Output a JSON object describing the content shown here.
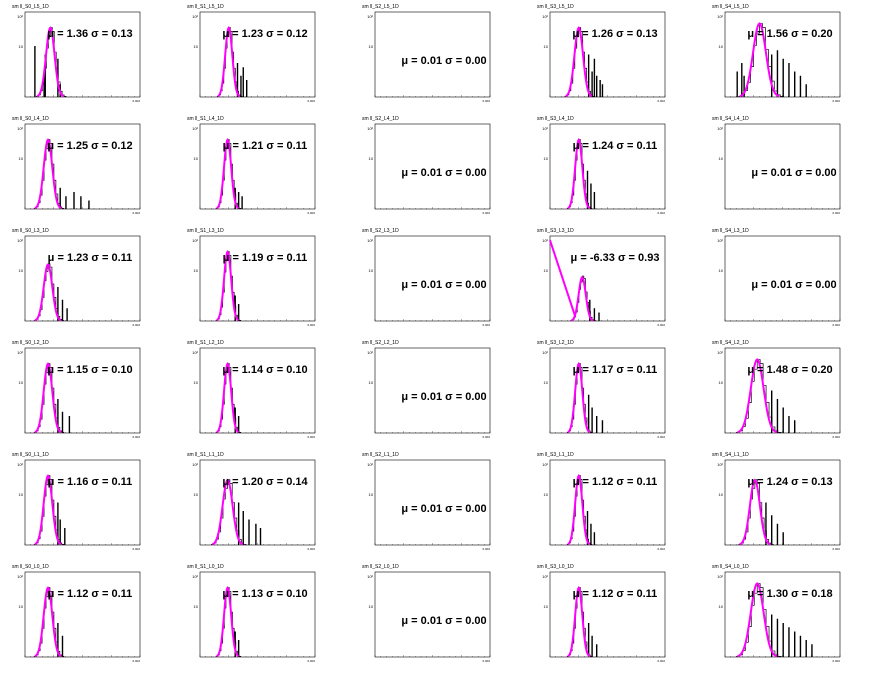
{
  "colors": {
    "histogram": "#000000",
    "fit": "#ff00ff",
    "frame": "#000000",
    "background": "#ffffff"
  },
  "chart_data": [
    {
      "type": "histogram",
      "title": "sm ll_S0_L5_1D",
      "yticks": [
        "10²",
        "10"
      ],
      "xtick": "0.002",
      "fit": {
        "mu": "1.36",
        "sigma": "0.13"
      },
      "peak": 0.22,
      "width": 0.06,
      "flat": false,
      "pos": "right",
      "tail": [
        [
          0.08,
          0.4
        ],
        [
          0.16,
          0.75
        ],
        [
          0.17,
          0.5
        ],
        [
          0.28,
          0.55
        ],
        [
          0.3,
          0.85
        ]
      ],
      "cap": 0.15,
      "curve": []
    },
    {
      "type": "histogram",
      "title": "sm ll_S1_L5_1D",
      "yticks": [
        "10²",
        "10"
      ],
      "xtick": "0.002",
      "fit": {
        "mu": "1.23",
        "sigma": "0.12"
      },
      "peak": 0.25,
      "width": 0.05,
      "flat": false,
      "pos": "right",
      "tail": [
        [
          0.32,
          0.6
        ],
        [
          0.35,
          0.75
        ],
        [
          0.37,
          0.65
        ],
        [
          0.4,
          0.8
        ]
      ],
      "cap": 0.15,
      "curve": []
    },
    {
      "type": "histogram",
      "title": "sm ll_S2_L5_1D",
      "yticks": [
        "10²",
        "10"
      ],
      "xtick": "0.002",
      "fit": {
        "mu": "0.01",
        "sigma": "0.00"
      },
      "flat": true,
      "pos": "lower"
    },
    {
      "type": "histogram",
      "title": "sm ll_S3_L5_1D",
      "yticks": [
        "10²",
        "10"
      ],
      "xtick": "0.002",
      "fit": {
        "mu": "1.26",
        "sigma": "0.13"
      },
      "peak": 0.25,
      "width": 0.06,
      "flat": false,
      "pos": "right",
      "tail": [
        [
          0.33,
          0.5
        ],
        [
          0.36,
          0.7
        ],
        [
          0.38,
          0.55
        ],
        [
          0.4,
          0.75
        ],
        [
          0.43,
          0.8
        ],
        [
          0.45,
          0.85
        ]
      ],
      "cap": 0.15,
      "curve": []
    },
    {
      "type": "histogram",
      "title": "sm ll_S4_L5_1D",
      "yticks": [
        "10²",
        "10"
      ],
      "xtick": "0.002",
      "fit": {
        "mu": "1.56",
        "sigma": "0.20"
      },
      "peak": 0.3,
      "width": 0.09,
      "flat": false,
      "pos": "right",
      "tail": [
        [
          0.1,
          0.7
        ],
        [
          0.14,
          0.6
        ],
        [
          0.16,
          0.75
        ],
        [
          0.4,
          0.5
        ],
        [
          0.45,
          0.45
        ],
        [
          0.5,
          0.55
        ],
        [
          0.55,
          0.6
        ],
        [
          0.6,
          0.7
        ],
        [
          0.65,
          0.75
        ],
        [
          0.7,
          0.85
        ]
      ],
      "cap": 0.1,
      "curve": []
    },
    {
      "type": "histogram",
      "title": "sm ll_S0_L4_1D",
      "yticks": [
        "10²",
        "10"
      ],
      "xtick": "0.002",
      "fit": {
        "mu": "1.25",
        "sigma": "0.12"
      },
      "peak": 0.2,
      "width": 0.06,
      "flat": false,
      "pos": "right",
      "tail": [
        [
          0.3,
          0.75
        ],
        [
          0.35,
          0.85
        ],
        [
          0.42,
          0.8
        ],
        [
          0.48,
          0.85
        ],
        [
          0.55,
          0.9
        ]
      ],
      "cap": 0.15,
      "curve": []
    },
    {
      "type": "histogram",
      "title": "sm ll_S1_L4_1D",
      "yticks": [
        "10²",
        "10"
      ],
      "xtick": "0.002",
      "fit": {
        "mu": "1.21",
        "sigma": "0.11"
      },
      "peak": 0.24,
      "width": 0.05,
      "flat": false,
      "pos": "right",
      "tail": [
        [
          0.3,
          0.75
        ],
        [
          0.33,
          0.8
        ],
        [
          0.36,
          0.85
        ]
      ],
      "cap": 0.15,
      "curve": []
    },
    {
      "type": "histogram",
      "title": "sm ll_S2_L4_1D",
      "yticks": [
        "10²",
        "10"
      ],
      "xtick": "0.002",
      "fit": {
        "mu": "0.01",
        "sigma": "0.00"
      },
      "flat": true,
      "pos": "lower"
    },
    {
      "type": "histogram",
      "title": "sm ll_S3_L4_1D",
      "yticks": [
        "10²",
        "10"
      ],
      "xtick": "0.002",
      "fit": {
        "mu": "1.24",
        "sigma": "0.11"
      },
      "peak": 0.25,
      "width": 0.05,
      "flat": false,
      "pos": "right",
      "tail": [
        [
          0.32,
          0.55
        ],
        [
          0.35,
          0.7
        ],
        [
          0.38,
          0.8
        ]
      ],
      "cap": 0.15,
      "curve": []
    },
    {
      "type": "histogram",
      "title": "sm ll_S4_L4_1D",
      "yticks": [
        "10²",
        "10"
      ],
      "xtick": "0.002",
      "fit": {
        "mu": "0.01",
        "sigma": "0.00"
      },
      "flat": true,
      "pos": "lower"
    },
    {
      "type": "histogram",
      "title": "sm ll_S0_L3_1D",
      "yticks": [
        "10²",
        "10"
      ],
      "xtick": "0.002",
      "fit": {
        "mu": "1.23",
        "sigma": "0.11"
      },
      "peak": 0.2,
      "width": 0.06,
      "flat": false,
      "pos": "right",
      "tail": [
        [
          0.28,
          0.6
        ],
        [
          0.32,
          0.75
        ],
        [
          0.36,
          0.85
        ]
      ],
      "cap": 0.3,
      "curve": []
    },
    {
      "type": "histogram",
      "title": "sm ll_S1_L3_1D",
      "yticks": [
        "10²",
        "10"
      ],
      "xtick": "0.002",
      "fit": {
        "mu": "1.19",
        "sigma": "0.11"
      },
      "peak": 0.24,
      "width": 0.05,
      "flat": false,
      "pos": "right",
      "tail": [
        [
          0.3,
          0.7
        ],
        [
          0.33,
          0.8
        ]
      ],
      "cap": 0.15,
      "curve": []
    },
    {
      "type": "histogram",
      "title": "sm ll_S2_L3_1D",
      "yticks": [
        "10²",
        "10"
      ],
      "xtick": "0.002",
      "fit": {
        "mu": "0.01",
        "sigma": "0.00"
      },
      "flat": true,
      "pos": "lower"
    },
    {
      "type": "histogram",
      "title": "sm ll_S3_L3_1D",
      "yticks": [
        "10²",
        "10"
      ],
      "xtick": "0.002",
      "fit": {
        "mu": "-6.33",
        "sigma": "0.93"
      },
      "flat": false,
      "pos": "right",
      "peak": 0.28,
      "width": 0.05,
      "tail": [
        [
          0.34,
          0.75
        ],
        [
          0.38,
          0.85
        ],
        [
          0.42,
          0.9
        ]
      ],
      "cap": 0.45,
      "curve": [
        [
          0.0,
          0.05
        ],
        [
          0.22,
          0.95
        ]
      ]
    },
    {
      "type": "histogram",
      "title": "sm ll_S4_L3_1D",
      "yticks": [
        "10²",
        "10"
      ],
      "xtick": "0.002",
      "fit": {
        "mu": "0.01",
        "sigma": "0.00"
      },
      "flat": true,
      "pos": "lower"
    },
    {
      "type": "histogram",
      "title": "sm ll_S0_L2_1D",
      "yticks": [
        "10²",
        "10"
      ],
      "xtick": "0.002",
      "fit": {
        "mu": "1.15",
        "sigma": "0.10"
      },
      "peak": 0.2,
      "width": 0.06,
      "flat": false,
      "pos": "right",
      "tail": [
        [
          0.28,
          0.6
        ],
        [
          0.32,
          0.75
        ],
        [
          0.38,
          0.8
        ]
      ],
      "cap": 0.15,
      "curve": []
    },
    {
      "type": "histogram",
      "title": "sm ll_S1_L2_1D",
      "yticks": [
        "10²",
        "10"
      ],
      "xtick": "0.002",
      "fit": {
        "mu": "1.14",
        "sigma": "0.10"
      },
      "peak": 0.24,
      "width": 0.05,
      "flat": false,
      "pos": "right",
      "tail": [
        [
          0.3,
          0.7
        ],
        [
          0.33,
          0.8
        ]
      ],
      "cap": 0.15,
      "curve": []
    },
    {
      "type": "histogram",
      "title": "sm ll_S2_L2_1D",
      "yticks": [
        "10²",
        "10"
      ],
      "xtick": "0.002",
      "fit": {
        "mu": "0.01",
        "sigma": "0.00"
      },
      "flat": true,
      "pos": "lower"
    },
    {
      "type": "histogram",
      "title": "sm ll_S3_L2_1D",
      "yticks": [
        "10²",
        "10"
      ],
      "xtick": "0.002",
      "fit": {
        "mu": "1.17",
        "sigma": "0.11"
      },
      "peak": 0.25,
      "width": 0.05,
      "flat": false,
      "pos": "right",
      "tail": [
        [
          0.33,
          0.55
        ],
        [
          0.36,
          0.7
        ],
        [
          0.4,
          0.8
        ],
        [
          0.45,
          0.85
        ]
      ],
      "cap": 0.15,
      "curve": []
    },
    {
      "type": "histogram",
      "title": "sm ll_S4_L2_1D",
      "yticks": [
        "10²",
        "10"
      ],
      "xtick": "0.002",
      "fit": {
        "mu": "1.48",
        "sigma": "0.20"
      },
      "peak": 0.28,
      "width": 0.09,
      "flat": false,
      "pos": "right",
      "tail": [
        [
          0.4,
          0.5
        ],
        [
          0.45,
          0.6
        ],
        [
          0.5,
          0.7
        ],
        [
          0.55,
          0.8
        ],
        [
          0.6,
          0.85
        ]
      ],
      "cap": 0.1,
      "curve": []
    },
    {
      "type": "histogram",
      "title": "sm ll_S0_L1_1D",
      "yticks": [
        "10²",
        "10"
      ],
      "xtick": "0.002",
      "fit": {
        "mu": "1.16",
        "sigma": "0.11"
      },
      "peak": 0.2,
      "width": 0.06,
      "flat": false,
      "pos": "right",
      "tail": [
        [
          0.28,
          0.5
        ],
        [
          0.3,
          0.7
        ],
        [
          0.34,
          0.8
        ]
      ],
      "cap": 0.15,
      "curve": []
    },
    {
      "type": "histogram",
      "title": "sm ll_S1_L1_1D",
      "yticks": [
        "10²",
        "10"
      ],
      "xtick": "0.002",
      "fit": {
        "mu": "1.20",
        "sigma": "0.14"
      },
      "peak": 0.24,
      "width": 0.07,
      "flat": false,
      "pos": "right",
      "tail": [
        [
          0.33,
          0.5
        ],
        [
          0.37,
          0.6
        ],
        [
          0.42,
          0.7
        ],
        [
          0.48,
          0.75
        ],
        [
          0.52,
          0.8
        ]
      ],
      "cap": 0.2,
      "curve": []
    },
    {
      "type": "histogram",
      "title": "sm ll_S2_L1_1D",
      "yticks": [
        "10²",
        "10"
      ],
      "xtick": "0.002",
      "fit": {
        "mu": "0.01",
        "sigma": "0.00"
      },
      "flat": true,
      "pos": "lower"
    },
    {
      "type": "histogram",
      "title": "sm ll_S3_L1_1D",
      "yticks": [
        "10²",
        "10"
      ],
      "xtick": "0.002",
      "fit": {
        "mu": "1.12",
        "sigma": "0.11"
      },
      "peak": 0.25,
      "width": 0.05,
      "flat": false,
      "pos": "right",
      "tail": [
        [
          0.32,
          0.6
        ],
        [
          0.35,
          0.75
        ],
        [
          0.38,
          0.85
        ]
      ],
      "cap": 0.15,
      "curve": []
    },
    {
      "type": "histogram",
      "title": "sm ll_S4_L1_1D",
      "yticks": [
        "10²",
        "10"
      ],
      "xtick": "0.002",
      "fit": {
        "mu": "1.24",
        "sigma": "0.13"
      },
      "peak": 0.26,
      "width": 0.07,
      "flat": false,
      "pos": "right",
      "tail": [
        [
          0.35,
          0.5
        ],
        [
          0.4,
          0.65
        ],
        [
          0.45,
          0.75
        ],
        [
          0.5,
          0.85
        ]
      ],
      "cap": 0.2,
      "curve": []
    },
    {
      "type": "histogram",
      "title": "sm ll_S0_L0_1D",
      "yticks": [
        "10²",
        "10"
      ],
      "xtick": "0.002",
      "fit": {
        "mu": "1.12",
        "sigma": "0.11"
      },
      "peak": 0.2,
      "width": 0.06,
      "flat": false,
      "pos": "right",
      "tail": [
        [
          0.28,
          0.6
        ],
        [
          0.32,
          0.75
        ]
      ],
      "cap": 0.15,
      "curve": []
    },
    {
      "type": "histogram",
      "title": "sm ll_S1_L0_1D",
      "yticks": [
        "10²",
        "10"
      ],
      "xtick": "0.002",
      "fit": {
        "mu": "1.13",
        "sigma": "0.10"
      },
      "peak": 0.24,
      "width": 0.05,
      "flat": false,
      "pos": "right",
      "tail": [
        [
          0.3,
          0.7
        ],
        [
          0.33,
          0.8
        ]
      ],
      "cap": 0.15,
      "curve": []
    },
    {
      "type": "histogram",
      "title": "sm ll_S2_L0_1D",
      "yticks": [
        "10²",
        "10"
      ],
      "xtick": "0.002",
      "fit": {
        "mu": "0.01",
        "sigma": "0.00"
      },
      "flat": true,
      "pos": "lower"
    },
    {
      "type": "histogram",
      "title": "sm ll_S3_L0_1D",
      "yticks": [
        "10²",
        "10"
      ],
      "xtick": "0.002",
      "fit": {
        "mu": "1.12",
        "sigma": "0.11"
      },
      "peak": 0.25,
      "width": 0.05,
      "flat": false,
      "pos": "right",
      "tail": [
        [
          0.33,
          0.6
        ],
        [
          0.36,
          0.75
        ],
        [
          0.4,
          0.85
        ]
      ],
      "cap": 0.15,
      "curve": []
    },
    {
      "type": "histogram",
      "title": "sm ll_S4_L0_1D",
      "yticks": [
        "10²",
        "10"
      ],
      "xtick": "0.002",
      "fit": {
        "mu": "1.30",
        "sigma": "0.18"
      },
      "peak": 0.28,
      "width": 0.09,
      "flat": false,
      "pos": "right",
      "tail": [
        [
          0.4,
          0.5
        ],
        [
          0.45,
          0.55
        ],
        [
          0.5,
          0.6
        ],
        [
          0.55,
          0.65
        ],
        [
          0.6,
          0.7
        ],
        [
          0.65,
          0.75
        ],
        [
          0.7,
          0.8
        ],
        [
          0.75,
          0.85
        ]
      ],
      "cap": 0.1,
      "curve": []
    }
  ]
}
